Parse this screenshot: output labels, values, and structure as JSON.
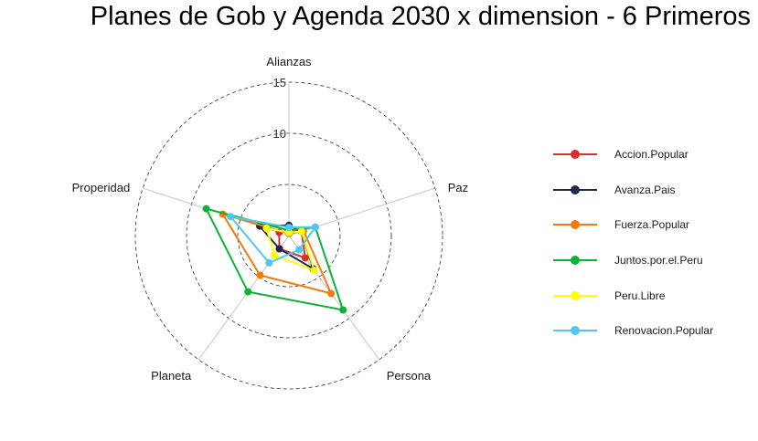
{
  "chart_data": {
    "type": "radar",
    "title": "Planes de Gob y Agenda 2030 x dimension - 6 Primeros",
    "axes": [
      "Alianzas",
      "Paz",
      "Persona",
      "Planeta",
      "Properidad"
    ],
    "rmax": 15,
    "grid_levels": [
      5,
      10,
      15
    ],
    "tick_labels": [
      "10",
      "15"
    ],
    "grid": "dashed circles",
    "legend_position": "right",
    "series": [
      {
        "name": "Accion.Popular",
        "color": "#d62f2f",
        "values": [
          0.5,
          1.3,
          2.7,
          1.6,
          1.0
        ]
      },
      {
        "name": "Avanza.Pais",
        "color": "#232746",
        "values": [
          1.0,
          1.3,
          4.0,
          1.6,
          3.0
        ]
      },
      {
        "name": "Fuerza.Popular",
        "color": "#f17c0d",
        "values": [
          0.2,
          1.5,
          7.0,
          4.8,
          6.8
        ]
      },
      {
        "name": "Juntos.por.el.Peru",
        "color": "#0db237",
        "values": [
          0.5,
          2.7,
          9.0,
          6.8,
          8.5
        ]
      },
      {
        "name": "Peru.Libre",
        "color": "#ffff00",
        "values": [
          0.3,
          1.3,
          4.2,
          2.4,
          2.3
        ]
      },
      {
        "name": "Renovacion.Popular",
        "color": "#4ec8ee",
        "values": [
          0.8,
          2.7,
          1.7,
          3.3,
          6.0
        ]
      }
    ]
  }
}
